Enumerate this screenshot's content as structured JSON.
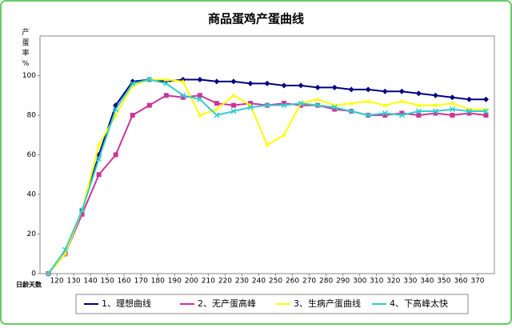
{
  "chart_data": {
    "type": "line",
    "title": "商品蛋鸡产蛋曲线",
    "y_label": "产蛋率%",
    "x_label": "日龄天数",
    "x": [
      115,
      125,
      135,
      145,
      155,
      165,
      175,
      185,
      195,
      205,
      215,
      225,
      235,
      245,
      255,
      265,
      275,
      285,
      295,
      305,
      315,
      325,
      335,
      345,
      355,
      365,
      375
    ],
    "xlim": [
      110,
      380
    ],
    "xticks": [
      120,
      130,
      140,
      150,
      160,
      170,
      180,
      190,
      200,
      210,
      220,
      230,
      240,
      250,
      260,
      270,
      280,
      290,
      300,
      310,
      320,
      330,
      340,
      350,
      360,
      370
    ],
    "ylim": [
      0,
      120
    ],
    "yticks": [
      0,
      20,
      40,
      60,
      80,
      100
    ],
    "series": [
      {
        "name": "1、理想曲线",
        "color": "#000080",
        "marker": "diamond",
        "values": [
          0,
          10,
          32,
          60,
          85,
          97,
          98,
          97,
          98,
          98,
          97,
          97,
          96,
          96,
          95,
          95,
          94,
          94,
          93,
          93,
          92,
          92,
          91,
          90,
          89,
          88,
          88
        ]
      },
      {
        "name": "2、无产蛋高峰",
        "color": "#cc3399",
        "marker": "square",
        "values": [
          0,
          10,
          30,
          50,
          60,
          80,
          85,
          90,
          89,
          90,
          86,
          85,
          86,
          85,
          86,
          85,
          85,
          83,
          82,
          80,
          80,
          81,
          80,
          81,
          80,
          81,
          80
        ]
      },
      {
        "name": "3、生病产蛋曲线",
        "color": "#ffff00",
        "marker": "triangle",
        "values": [
          0,
          10,
          32,
          65,
          80,
          95,
          98,
          98,
          97,
          80,
          83,
          90,
          85,
          65,
          70,
          86,
          88,
          85,
          86,
          87,
          85,
          87,
          85,
          85,
          86,
          83,
          83
        ]
      },
      {
        "name": "4、下高峰太快",
        "color": "#33cccc",
        "marker": "cross",
        "values": [
          0,
          12,
          32,
          58,
          83,
          96,
          98,
          96,
          90,
          88,
          80,
          82,
          84,
          85,
          85,
          86,
          85,
          84,
          82,
          80,
          81,
          80,
          82,
          82,
          83,
          82,
          82
        ]
      }
    ]
  }
}
